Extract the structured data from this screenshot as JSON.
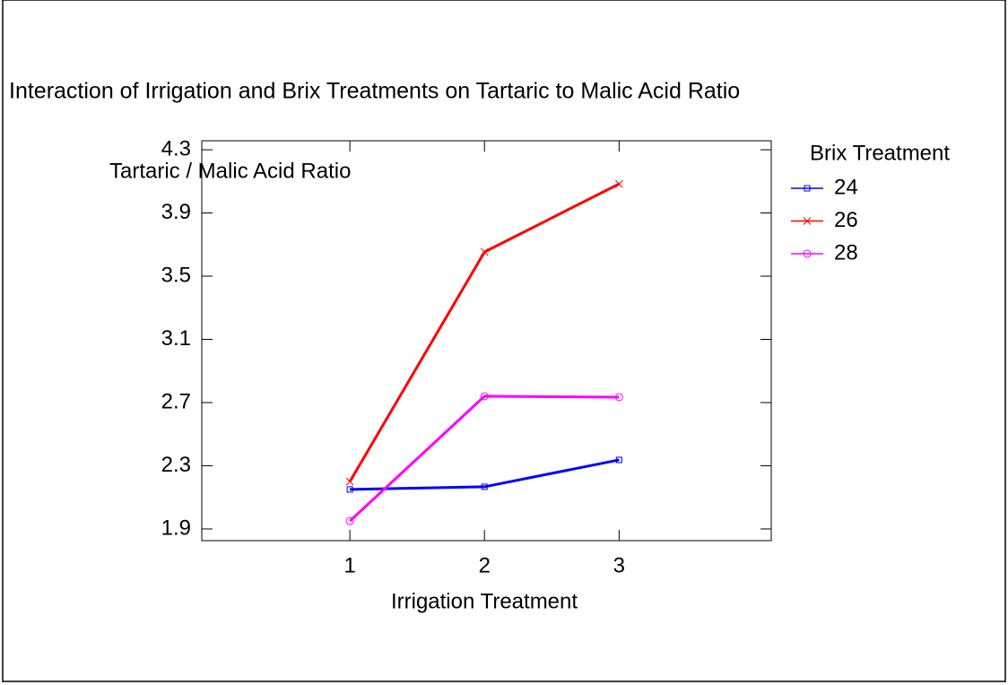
{
  "chart_data": {
    "type": "line",
    "title": "Interaction of Irrigation and Brix Treatments on Tartaric to Malic Acid Ratio",
    "xlabel": "Irrigation Treatment",
    "ylabel": "Tartaric / Malic Acid Ratio",
    "legend_title": "Brix Treatment",
    "x": [
      1,
      2,
      3
    ],
    "xlim": [
      -0.1,
      4.13
    ],
    "xticks": [
      1,
      2,
      3
    ],
    "ylim": [
      1.826,
      4.357
    ],
    "yticks": [
      1.9,
      2.3,
      2.7,
      3.1,
      3.5,
      3.9,
      4.3
    ],
    "series": [
      {
        "name": "24",
        "color": "#0000ff",
        "marker": "square",
        "values": [
          2.15,
          2.167,
          2.337
        ]
      },
      {
        "name": "26",
        "color": "#ff0000",
        "marker": "x",
        "values": [
          2.2,
          3.653,
          4.084
        ]
      },
      {
        "name": "28",
        "color": "#ff00ff",
        "marker": "circle",
        "values": [
          1.95,
          2.74,
          2.734
        ]
      }
    ]
  }
}
